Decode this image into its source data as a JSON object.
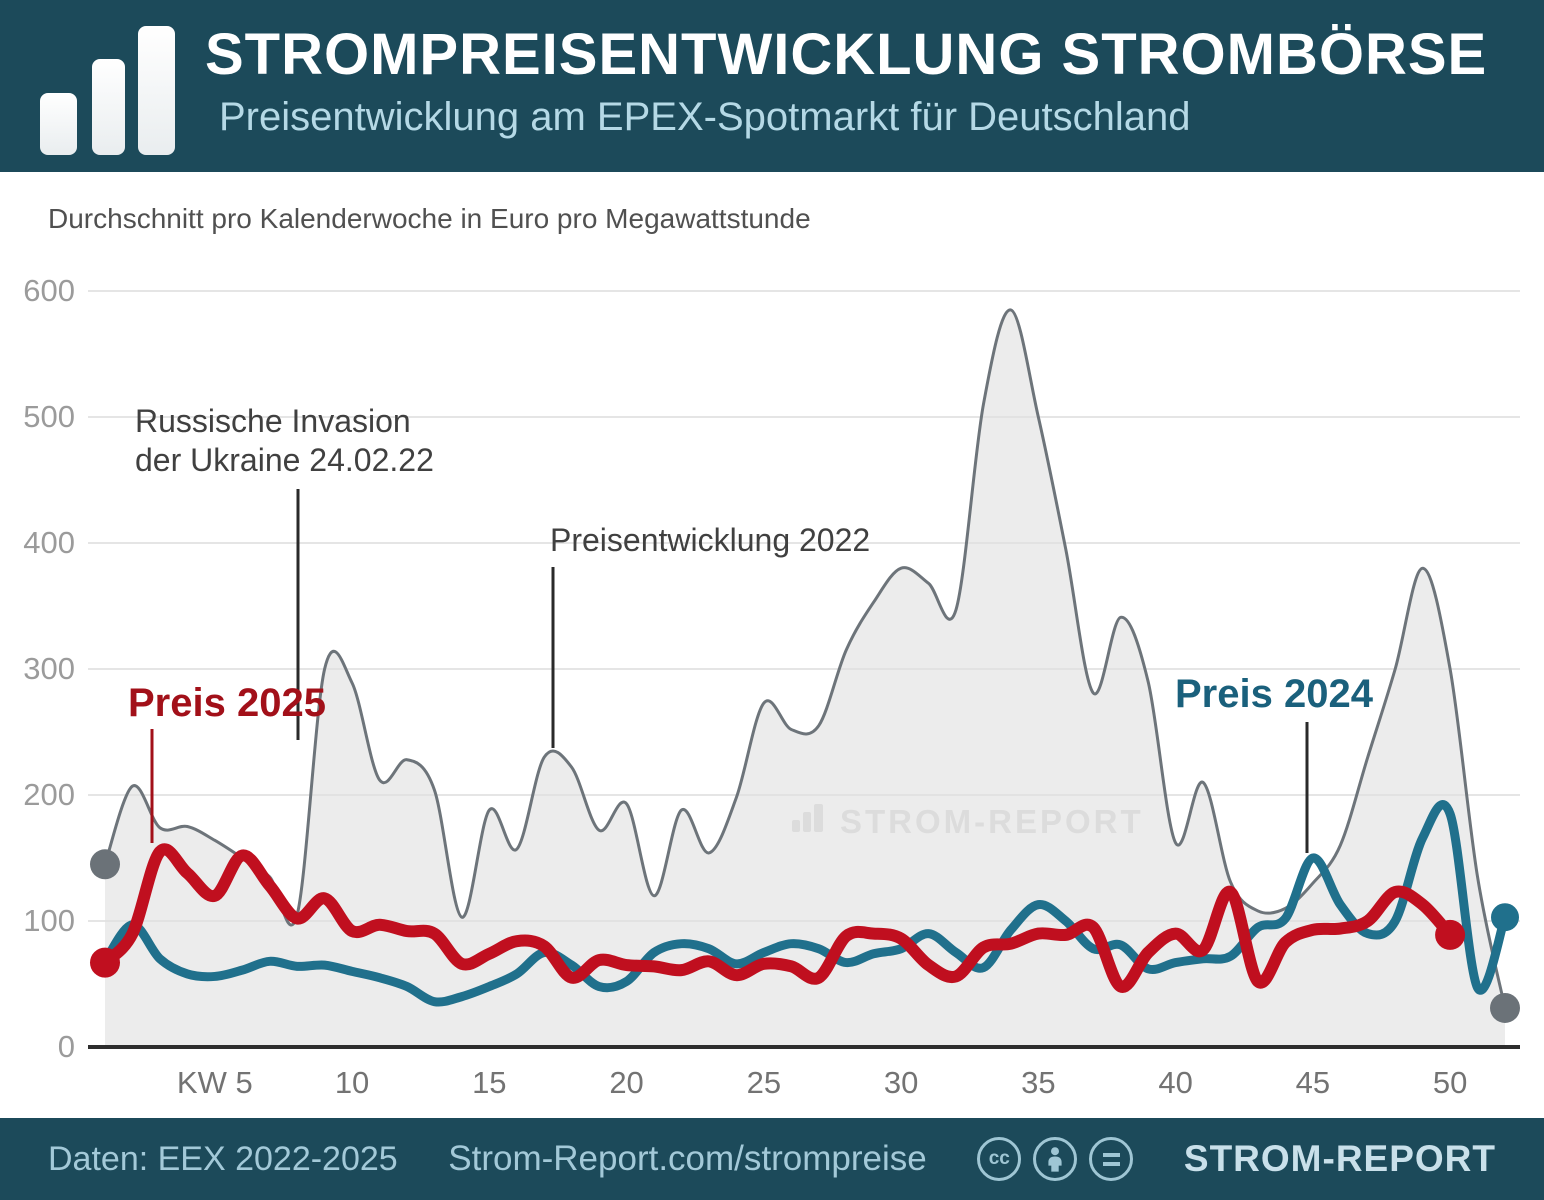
{
  "header": {
    "title": "STROMPREISENTWICKLUNG STROMBÖRSE",
    "subtitle": "Preisentwicklung am EPEX-Spotmarkt für Deutschland"
  },
  "chart": {
    "subtitle": "Durchschnitt pro Kalenderwoche in Euro pro Megawattstunde",
    "watermark": "STROM-REPORT"
  },
  "annotations": {
    "invasion": "Russische Invasion\nder Ukraine 24.02.22",
    "y2022": "Preisentwicklung 2022",
    "y2025": "Preis 2025",
    "y2024": "Preis 2024"
  },
  "chart_data": {
    "type": "area+line",
    "title": "Strompreisentwicklung Strombörse (EPEX-Spotmarkt Deutschland)",
    "xlabel": "Kalenderwoche (KW)",
    "ylabel": "Euro pro Megawattstunde, Durchschnitt pro Kalenderwoche",
    "ylim": [
      0,
      600
    ],
    "grid": "horizontal",
    "legend_position": "inline-annotations",
    "y_ticks": [
      {
        "v": 0,
        "label": "0"
      },
      {
        "v": 100,
        "label": "100"
      },
      {
        "v": 200,
        "label": "200"
      },
      {
        "v": 300,
        "label": "300"
      },
      {
        "v": 400,
        "label": "400"
      },
      {
        "v": 500,
        "label": "500"
      },
      {
        "v": 600,
        "label": "600"
      }
    ],
    "x_ticks": [
      {
        "week": 5,
        "label": "KW 5"
      },
      {
        "week": 10,
        "label": "10"
      },
      {
        "week": 15,
        "label": "15"
      },
      {
        "week": 20,
        "label": "20"
      },
      {
        "week": 25,
        "label": "25"
      },
      {
        "week": 30,
        "label": "30"
      },
      {
        "week": 35,
        "label": "35"
      },
      {
        "week": 40,
        "label": "40"
      },
      {
        "week": 45,
        "label": "45"
      },
      {
        "week": 50,
        "label": "50"
      }
    ],
    "series": [
      {
        "name": "Preisentwicklung 2022",
        "type": "area",
        "color": "#6d747a",
        "fill": "rgba(223,223,223,0.6)",
        "width": 3,
        "dot_color": "#6b7278",
        "dot_r": 15,
        "first_week": 1,
        "dots": [
          {
            "week": 1,
            "value": 145
          },
          {
            "week": 52,
            "value": 31
          }
        ],
        "values": [
          145,
          207,
          174,
          175,
          164,
          150,
          135,
          105,
          300,
          289,
          212,
          228,
          204,
          103,
          188,
          157,
          230,
          222,
          172,
          193,
          120,
          188,
          154,
          198,
          273,
          252,
          255,
          315,
          353,
          380,
          368,
          347,
          510,
          585,
          500,
          395,
          281,
          341,
          290,
          162,
          210,
          131,
          108,
          110,
          130,
          160,
          230,
          300,
          380,
          300,
          135,
          31
        ]
      },
      {
        "name": "Preis 2024",
        "type": "line",
        "color": "#20708c",
        "width": 9,
        "dot_r": 14,
        "first_week": 1,
        "dots": [
          {
            "week": 52,
            "value": 103
          }
        ],
        "values": [
          68,
          97,
          70,
          58,
          56,
          61,
          68,
          64,
          65,
          60,
          55,
          48,
          36,
          40,
          48,
          58,
          75,
          65,
          48,
          52,
          75,
          82,
          78,
          66,
          75,
          82,
          78,
          67,
          74,
          78,
          90,
          75,
          63,
          93,
          113,
          100,
          78,
          81,
          62,
          67,
          70,
          72,
          95,
          102,
          150,
          113,
          90,
          100,
          166,
          185,
          47,
          103
        ]
      },
      {
        "name": "Preis 2025",
        "type": "line",
        "color": "#c00f1f",
        "width": 12,
        "dot_r": 15,
        "first_week": 1,
        "dots": [
          {
            "week": 1,
            "value": 67
          },
          {
            "week": 50,
            "value": 89
          }
        ],
        "values": [
          67,
          90,
          155,
          138,
          120,
          152,
          128,
          102,
          118,
          92,
          97,
          92,
          90,
          66,
          74,
          84,
          80,
          55,
          69,
          65,
          64,
          61,
          68,
          57,
          66,
          64,
          55,
          88,
          90,
          86,
          65,
          56,
          79,
          82,
          90,
          89,
          95,
          48,
          75,
          90,
          77,
          123,
          52,
          83,
          93,
          94,
          100,
          123,
          113,
          89
        ]
      }
    ]
  },
  "footer": {
    "source": "Daten: EEX 2022-2025",
    "url": "Strom-Report.com/strompreise",
    "cc_text": "cc",
    "brand": "STROM-REPORT",
    "license_icons": [
      "cc-icon",
      "attribution-person-icon",
      "equal-license-icon"
    ]
  }
}
